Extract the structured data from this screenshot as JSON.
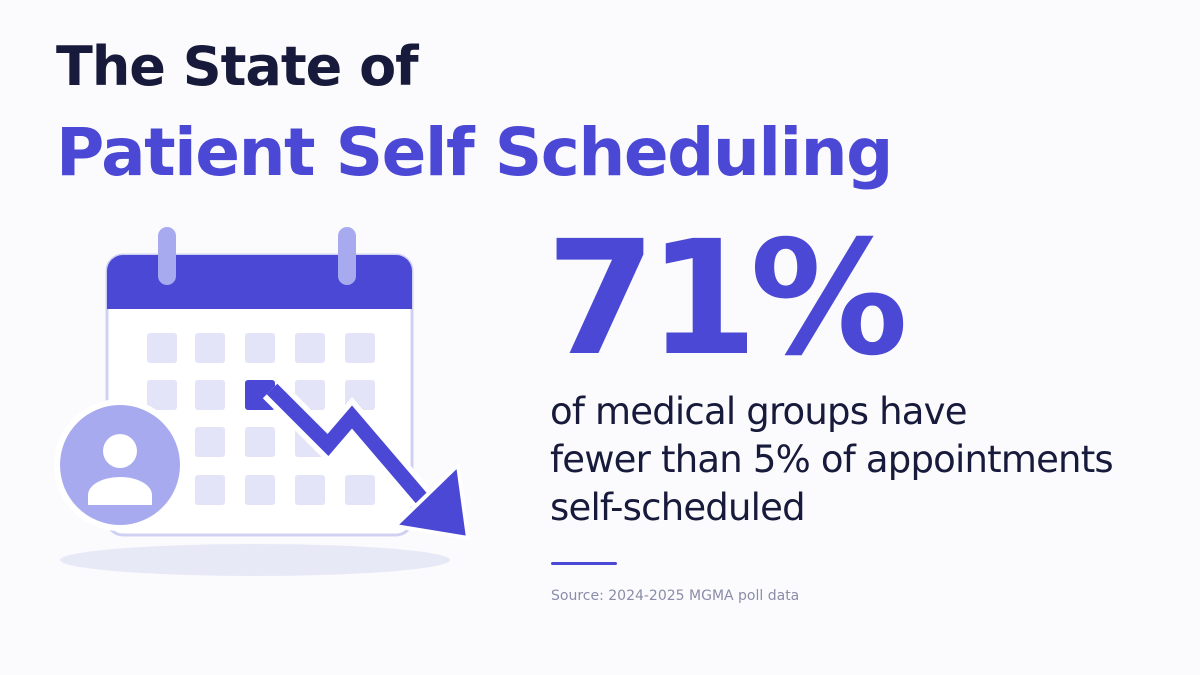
{
  "title": {
    "line1": "The State of",
    "line2": "Patient Self Scheduling"
  },
  "stat": {
    "value": "71%",
    "description": [
      "of medical groups have",
      "fewer than 5% of appointments",
      "self-scheduled"
    ]
  },
  "source": "Source: 2024-2025 MGMA poll data",
  "colors": {
    "accent": "#4a48d4",
    "accent_light": "#a8aaf0",
    "text_dark": "#171a3a",
    "muted": "#8a8da8",
    "background": "#fbfbfe"
  },
  "icons": [
    "calendar-icon",
    "user-avatar-icon",
    "trend-down-arrow-icon"
  ]
}
